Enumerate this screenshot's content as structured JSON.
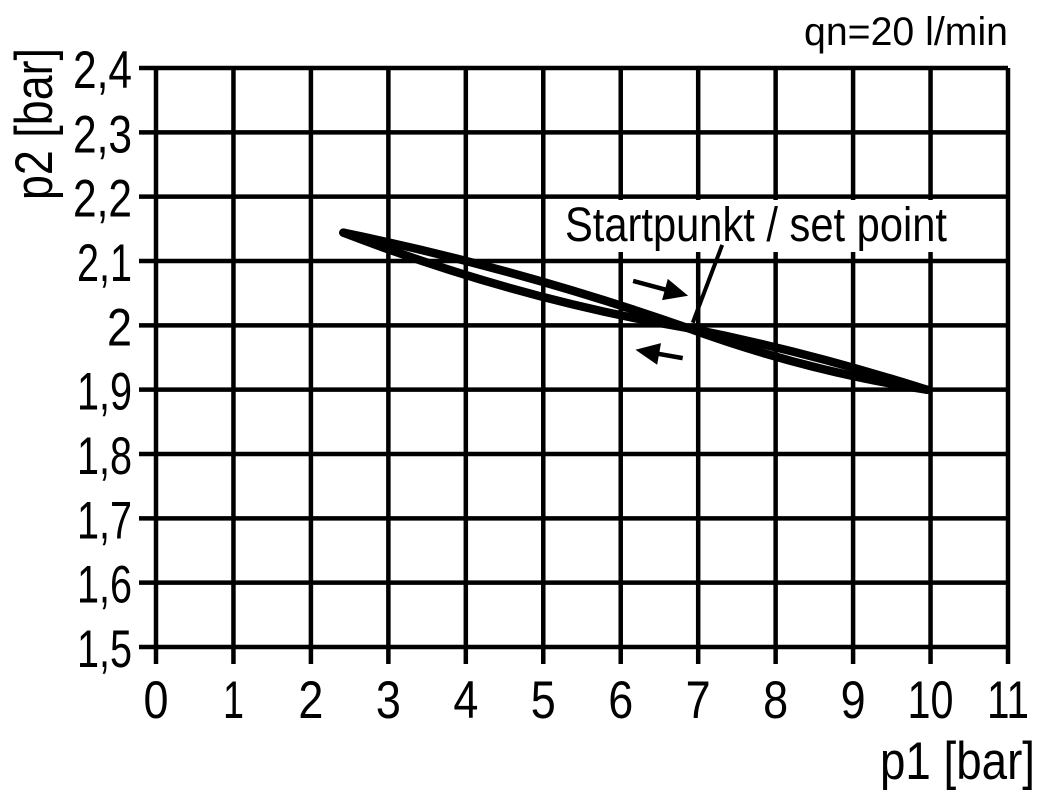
{
  "chart_data": {
    "type": "line",
    "title": "qn=20 l/min",
    "xlabel": "p1 [bar]",
    "ylabel": "p2 [bar]",
    "xlim": [
      0,
      11
    ],
    "ylim": [
      1.5,
      2.4
    ],
    "grid": true,
    "background": "#ffffff",
    "line_color": "#000000",
    "x_ticks": {
      "values": [
        0,
        1,
        2,
        3,
        4,
        5,
        6,
        7,
        8,
        9,
        10,
        11
      ],
      "labels": [
        "0",
        "1",
        "2",
        "3",
        "4",
        "5",
        "6",
        "7",
        "8",
        "9",
        "10",
        "11"
      ]
    },
    "y_ticks": {
      "values": [
        2.4,
        2.3,
        2.2,
        2.1,
        2.0,
        1.9,
        1.8,
        1.7,
        1.6,
        1.5
      ],
      "labels": [
        "2,4",
        "2,3",
        "2,2",
        "2,1",
        "2",
        "1,9",
        "1,8",
        "1,7",
        "1,6",
        "1,5"
      ]
    },
    "series": [
      {
        "name": "hysteresis branch, increasing p1 (upper-left to lower-right)",
        "quad_path": [
          [
            2.42,
            2.144
          ],
          [
            4.65,
            2.089
          ],
          [
            6.86,
            1.996
          ],
          [
            8.38,
            1.929
          ],
          [
            9.95,
            1.9
          ]
        ]
      },
      {
        "name": "hysteresis branch, decreasing p1 (lower-left to upper-right)",
        "quad_path": [
          [
            2.42,
            2.144
          ],
          [
            4.65,
            2.041
          ],
          [
            6.86,
            1.996
          ],
          [
            8.38,
            1.96
          ],
          [
            9.95,
            1.9
          ]
        ]
      }
    ],
    "set_point": [
      6.9,
      2.0
    ],
    "annotation": {
      "text": "Startpunkt / set point",
      "leader": [
        [
          7.31,
          2.125
        ],
        [
          6.93,
          2.004
        ]
      ]
    },
    "arrows": [
      {
        "name": "direction-arrow-right",
        "from": [
          6.16,
          2.069
        ],
        "to": [
          6.87,
          2.046
        ]
      },
      {
        "name": "direction-arrow-left",
        "from": [
          6.8,
          1.949
        ],
        "to": [
          6.19,
          1.962
        ]
      }
    ]
  }
}
